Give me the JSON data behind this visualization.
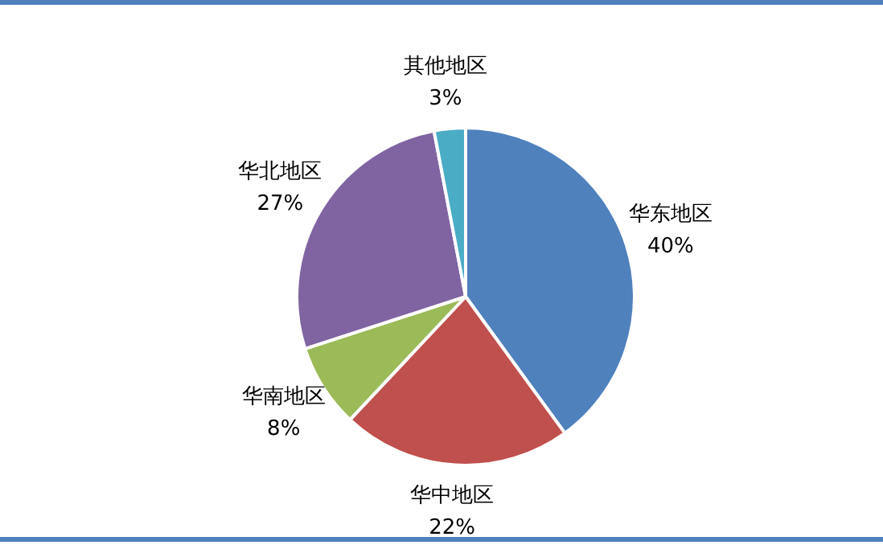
{
  "chart_data": {
    "type": "pie",
    "categories": [
      "华东地区",
      "华中地区",
      "华南地区",
      "华北地区",
      "其他地区"
    ],
    "values": [
      40,
      22,
      8,
      27,
      3
    ],
    "value_labels": [
      "40%",
      "22%",
      "8%",
      "27%",
      "3%"
    ],
    "colors": [
      "#4f81bd",
      "#c0504d",
      "#9bbb59",
      "#8064a2",
      "#4bacc6"
    ]
  }
}
